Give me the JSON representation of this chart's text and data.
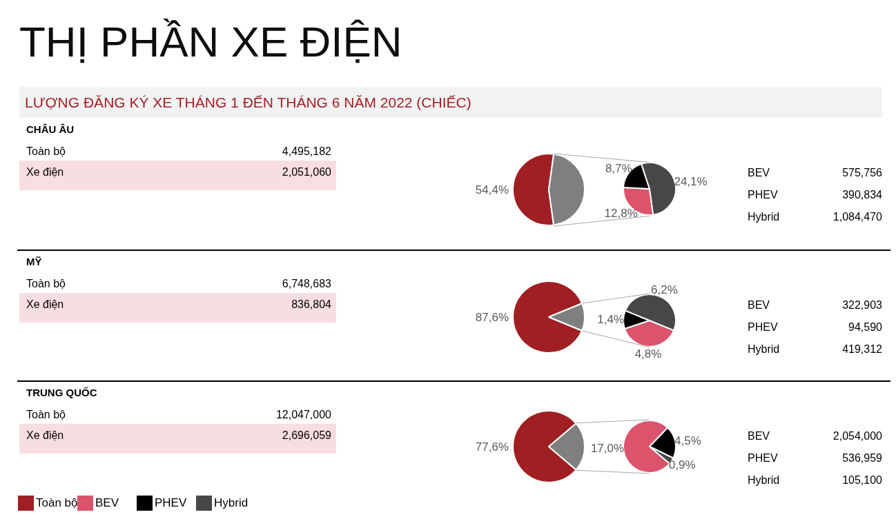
{
  "chart_data": [
    {
      "type": "other",
      "title": "THỊ PHẦN XE ĐIỆN",
      "subtitle": "LƯỢNG ĐĂNG KÝ XE THÁNG 1 ĐẾN THÁNG 6 NĂM 2022 (CHIẾC)"
    },
    {
      "type": "other",
      "title": "CHÂU ÂU",
      "categories": [
        "Toàn bộ",
        "Xe điện"
      ],
      "values": [
        4495182,
        2051060
      ],
      "value_labels": [
        "4,495,182",
        "2,051,060"
      ]
    },
    {
      "type": "pie",
      "categories": [
        null,
        null
      ],
      "values": [
        54.4,
        45.6
      ],
      "colors": [
        "#a01f22",
        "#7f7f7f"
      ],
      "value_labels": [
        "54,4%",
        null
      ]
    },
    {
      "type": "pie",
      "categories": [
        null,
        null,
        null
      ],
      "values": [
        12.8,
        8.7,
        24.1
      ],
      "colors": [
        "#db546b",
        "#000000",
        "#474747"
      ],
      "value_labels": [
        "12,8%",
        "8,7%",
        "24,1%"
      ]
    },
    {
      "type": "other",
      "categories": [
        "BEV",
        "PHEV",
        "Hybrid"
      ],
      "values": [
        575756,
        390834,
        1084470
      ],
      "value_labels": [
        "575,756",
        "390,834",
        "1,084,470"
      ]
    },
    {
      "type": "other",
      "title": "MỸ",
      "categories": [
        "Toàn bộ",
        "Xe điện"
      ],
      "values": [
        6748683,
        836804
      ],
      "value_labels": [
        "6,748,683",
        "836,804"
      ]
    },
    {
      "type": "pie",
      "categories": [
        null,
        null
      ],
      "values": [
        87.6,
        12.4
      ],
      "colors": [
        "#a01f22",
        "#7f7f7f"
      ],
      "value_labels": [
        "87,6%",
        null
      ]
    },
    {
      "type": "pie",
      "categories": [
        null,
        null,
        null
      ],
      "values": [
        4.8,
        1.4,
        6.2
      ],
      "colors": [
        "#db546b",
        "#000000",
        "#474747"
      ],
      "value_labels": [
        "4,8%",
        "1,4%",
        "6,2%"
      ]
    },
    {
      "type": "other",
      "categories": [
        "BEV",
        "PHEV",
        "Hybrid"
      ],
      "values": [
        322903,
        94590,
        419312
      ],
      "value_labels": [
        "322,903",
        "94,590",
        "419,312"
      ]
    },
    {
      "type": "other",
      "title": "TRUNG QUỐC",
      "categories": [
        "Toàn bộ",
        "Xe điện"
      ],
      "values": [
        12047000,
        2696059
      ],
      "value_labels": [
        "12,047,000",
        "2,696,059"
      ]
    },
    {
      "type": "pie",
      "categories": [
        "Toàn bộ",
        null
      ],
      "values": [
        77.6,
        22.4
      ],
      "colors": [
        "#a01f22",
        "#7f7f7f"
      ],
      "value_labels": [
        "77,6%",
        null
      ],
      "legend": "bottom left"
    },
    {
      "type": "pie",
      "categories": [
        "BEV",
        "PHEV",
        "Hybrid"
      ],
      "values": [
        17.0,
        4.5,
        0.9
      ],
      "colors": [
        "#db546b",
        "#000000",
        "#474747"
      ],
      "value_labels": [
        "17,0%",
        "4,5%",
        "0,9%"
      ],
      "legend": "bottom left"
    },
    {
      "type": "other",
      "categories": [
        "BEV",
        "PHEV",
        "Hybrid"
      ],
      "values": [
        2054000,
        536959,
        105100
      ],
      "value_labels": [
        "2,054,000",
        "536,959",
        "105,100"
      ]
    }
  ]
}
